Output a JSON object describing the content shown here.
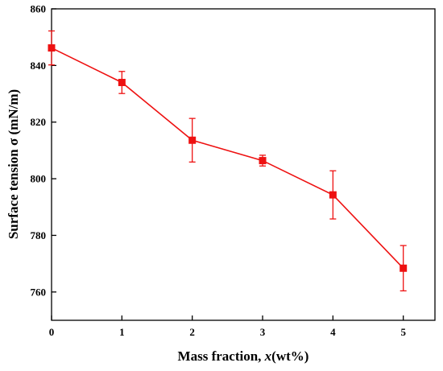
{
  "chart_data": {
    "type": "line",
    "title": "",
    "xlabel_main": "Mass fraction, ",
    "xlabel_var": "x",
    "xlabel_unit": "(wt%)",
    "ylabel": "Surface tension σ (mN/m)",
    "xlim": [
      0,
      5.45
    ],
    "ylim": [
      750,
      860
    ],
    "x_ticks": [
      0,
      1,
      2,
      3,
      4,
      5
    ],
    "x_tick_labels": [
      "0",
      "1",
      "2",
      "3",
      "4",
      "5"
    ],
    "y_ticks": [
      760,
      780,
      800,
      820,
      840,
      860
    ],
    "y_tick_labels": [
      "760",
      "780",
      "800",
      "820",
      "840",
      "860"
    ],
    "grid": false,
    "series": [
      {
        "color": "#ee1111",
        "marker": "square",
        "x": [
          0,
          1,
          2,
          3,
          4,
          5
        ],
        "y": [
          846.2,
          834.0,
          813.6,
          806.4,
          794.3,
          768.4
        ],
        "error": [
          6.0,
          3.9,
          7.7,
          1.9,
          8.5,
          8.0
        ]
      }
    ]
  }
}
